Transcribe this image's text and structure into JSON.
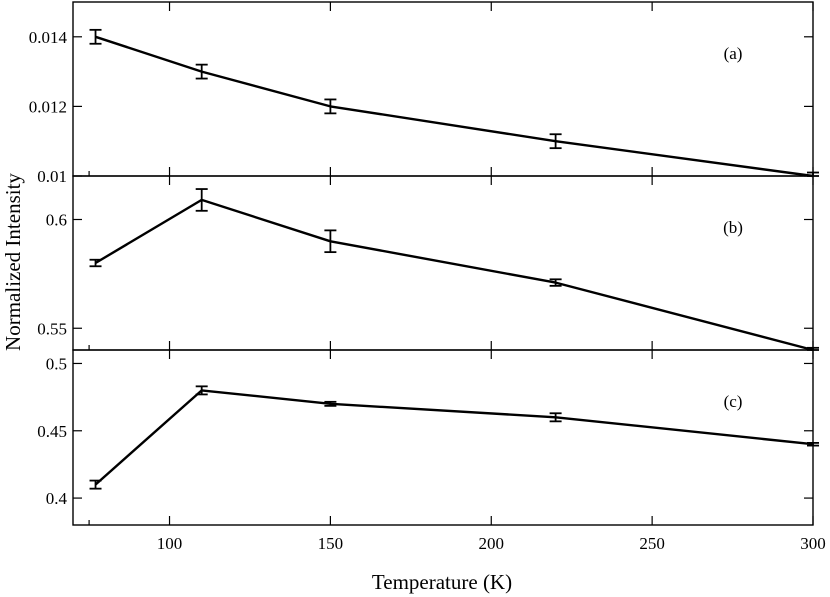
{
  "figure": {
    "xlabel": "Temperature (K)",
    "ylabel": "Normalized Intensity"
  },
  "chart_data": [
    {
      "type": "line",
      "panel_label": "(a)",
      "x": [
        77,
        110,
        150,
        220,
        300
      ],
      "values": [
        0.014,
        0.013,
        0.012,
        0.011,
        0.01
      ],
      "errors": [
        0.0002,
        0.0002,
        0.0002,
        0.0002,
        0.0001
      ],
      "xlim": [
        70,
        300
      ],
      "ylim": [
        0.01,
        0.015
      ],
      "yticks": [
        0.01,
        0.012,
        0.014
      ],
      "ytick_labels": [
        "0.01",
        "0.012",
        "0.014"
      ],
      "xticks": [
        100,
        150,
        200,
        250,
        300
      ],
      "xtick_labels": [],
      "grid": false
    },
    {
      "type": "line",
      "panel_label": "(b)",
      "x": [
        77,
        110,
        150,
        220,
        300
      ],
      "values": [
        0.58,
        0.609,
        0.59,
        0.571,
        0.54
      ],
      "errors": [
        0.0015,
        0.005,
        0.005,
        0.0015,
        0.001
      ],
      "xlim": [
        70,
        300
      ],
      "ylim": [
        0.54,
        0.62
      ],
      "yticks": [
        0.55,
        0.6
      ],
      "ytick_labels": [
        "0.55",
        "0.6"
      ],
      "xticks": [
        100,
        150,
        200,
        250,
        300
      ],
      "xtick_labels": [],
      "grid": false
    },
    {
      "type": "line",
      "panel_label": "(c)",
      "x": [
        77,
        110,
        150,
        220,
        300
      ],
      "values": [
        0.41,
        0.48,
        0.47,
        0.46,
        0.44
      ],
      "errors": [
        0.003,
        0.003,
        0.0015,
        0.003,
        0.001
      ],
      "xlim": [
        70,
        300
      ],
      "ylim": [
        0.38,
        0.51
      ],
      "yticks": [
        0.4,
        0.45,
        0.5
      ],
      "ytick_labels": [
        "0.4",
        "0.45",
        "0.5"
      ],
      "xticks": [
        100,
        150,
        200,
        250,
        300
      ],
      "xtick_labels": [
        "100",
        "150",
        "200",
        "250",
        "300"
      ],
      "grid": false
    }
  ]
}
